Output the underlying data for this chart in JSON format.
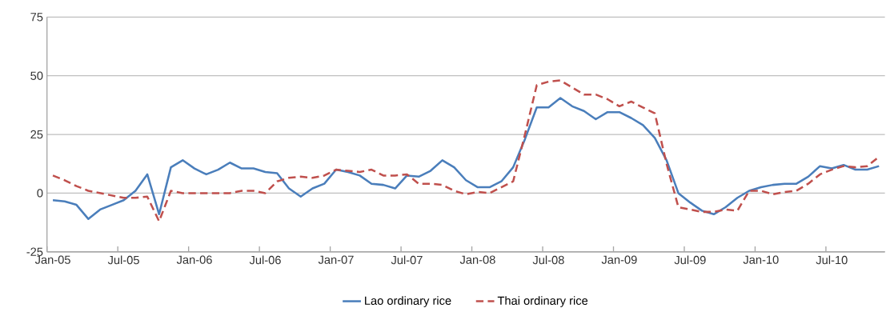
{
  "chart_data": {
    "type": "line",
    "categories": [
      "Jan-05",
      null,
      null,
      null,
      null,
      null,
      "Jul-05",
      null,
      null,
      null,
      null,
      null,
      "Jan-06",
      null,
      null,
      null,
      null,
      null,
      "Jul-06",
      null,
      null,
      null,
      null,
      null,
      "Jan-07",
      null,
      null,
      null,
      null,
      null,
      "Jul-07",
      null,
      null,
      null,
      null,
      null,
      "Jan-08",
      null,
      null,
      null,
      null,
      null,
      "Jul-08",
      null,
      null,
      null,
      null,
      null,
      "Jan-09",
      null,
      null,
      null,
      null,
      null,
      "Jul-09",
      null,
      null,
      null,
      null,
      null,
      "Jan-10",
      null,
      null,
      null,
      null,
      null,
      "Jul-10",
      null,
      null,
      null,
      null
    ],
    "series": [
      {
        "name": "Lao ordinary rice",
        "color": "#4a7ebb",
        "line_style": "solid",
        "values": [
          -3,
          -3.5,
          -5,
          -11,
          -7,
          -5,
          -3,
          1,
          8,
          -9,
          11,
          14,
          10.5,
          8,
          10,
          13,
          10.5,
          10.5,
          9,
          8.5,
          2,
          -1.5,
          2,
          4,
          10,
          9,
          7.5,
          4,
          3.5,
          2,
          7.5,
          7,
          9.5,
          14,
          11,
          5.5,
          2.5,
          2.5,
          5,
          11,
          23,
          36.5,
          36.5,
          40.5,
          37,
          35,
          31.5,
          34.5,
          34.5,
          32,
          29,
          23.5,
          14,
          0,
          -4,
          -7.5,
          -9,
          -6,
          -2,
          1,
          2.5,
          3.5,
          4,
          4,
          7,
          11.5,
          10.5,
          12,
          10,
          10,
          11.5
        ]
      },
      {
        "name": "Thai ordinary rice",
        "color": "#c0504d",
        "line_style": "dashed",
        "values": [
          7.5,
          5.5,
          3,
          1,
          0,
          -1,
          -2,
          -2,
          -1.5,
          -12,
          1,
          0,
          0,
          0,
          0,
          0,
          1,
          1,
          0,
          5,
          6.5,
          7,
          6.5,
          7.5,
          10,
          9.5,
          9,
          10,
          7.5,
          7.5,
          8,
          4,
          4,
          3.5,
          1,
          -0.5,
          0.5,
          0,
          2.5,
          5,
          25,
          46,
          47.5,
          48,
          45,
          42,
          42,
          40,
          37,
          39,
          36.5,
          34,
          12.5,
          -6,
          -7,
          -8,
          -8,
          -7,
          -7.5,
          1,
          1,
          -0.5,
          0.5,
          1,
          4,
          8,
          10,
          11.5,
          11,
          11.5,
          15.5
        ]
      }
    ],
    "ylim": [
      -25,
      75
    ],
    "yticks": [
      -25,
      0,
      25,
      50,
      75
    ],
    "grid": "y",
    "legend": "bottom"
  }
}
